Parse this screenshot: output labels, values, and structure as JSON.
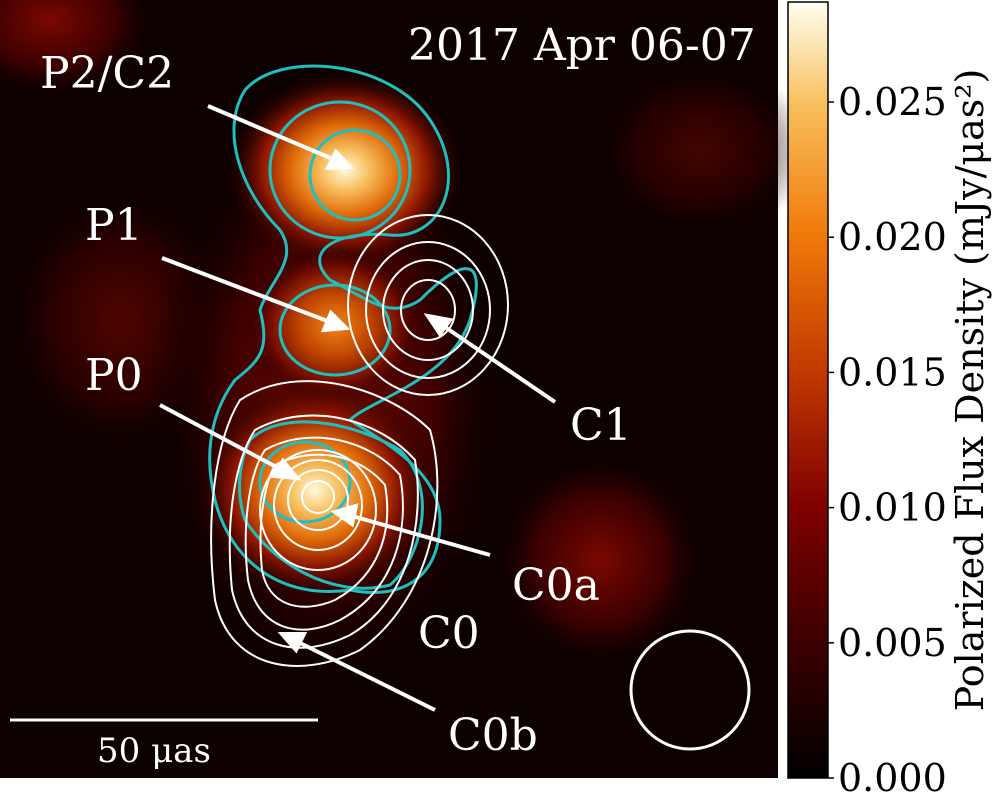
{
  "chart_data": {
    "type": "heatmap",
    "title": "2017 Apr 06-07",
    "colorbar": {
      "label": "Polarized Flux Density (mJy/μas²)",
      "range": [
        0.0,
        0.0287
      ],
      "ticks": [
        0.0,
        0.005,
        0.01,
        0.015,
        0.02,
        0.025
      ],
      "tick_labels": [
        "0.000",
        "0.005",
        "0.010",
        "0.015",
        "0.020",
        "0.025"
      ],
      "colormap": [
        "#000000",
        "#5a0000",
        "#9a1800",
        "#d85a00",
        "#f58a18",
        "#f8c060",
        "#fffff0"
      ]
    },
    "annotations": [
      "P2/C2",
      "P1",
      "P0",
      "C1",
      "C0a",
      "C0",
      "C0b"
    ],
    "scale_bar": {
      "label": "50 μas",
      "length_uas": 50
    },
    "contour_colors": {
      "polarized": "#1fbfbf",
      "total_intensity": "#ffffff"
    }
  }
}
